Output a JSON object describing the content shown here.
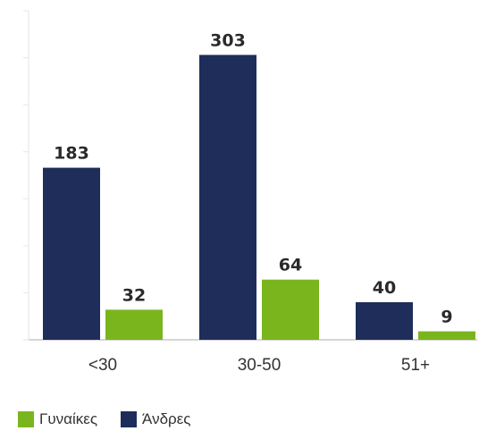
{
  "chart_data": {
    "type": "bar",
    "categories": [
      "<30",
      "30-50",
      "51+"
    ],
    "series": [
      {
        "name": "Άνδρες",
        "color": "#1e2d5a",
        "values": [
          183,
          303,
          40
        ]
      },
      {
        "name": "Γυναίκες",
        "color": "#7ab51d",
        "values": [
          32,
          64,
          9
        ]
      }
    ],
    "ylim": [
      0,
      350
    ],
    "grid": false,
    "legend": {
      "placement": "bottom-left",
      "order": [
        "Γυναίκες",
        "Άνδρες"
      ]
    }
  },
  "legend": {
    "women_label": "Γυναίκες",
    "men_label": "Άνδρες"
  }
}
